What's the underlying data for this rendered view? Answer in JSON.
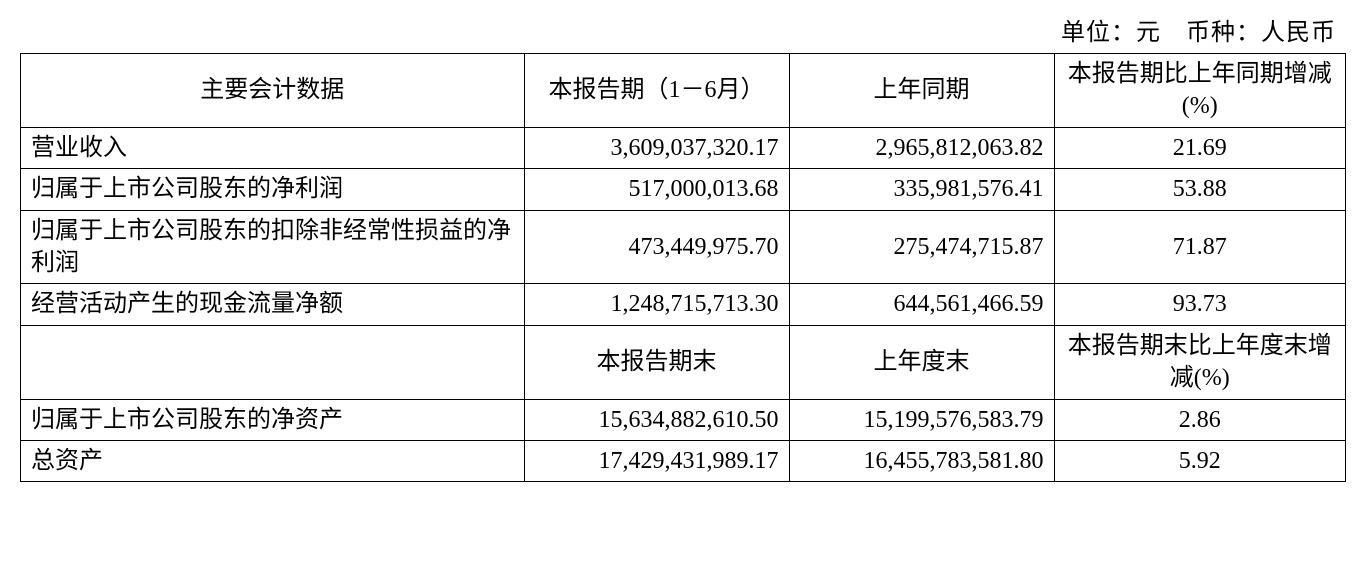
{
  "meta": {
    "unit_line": "单位：元　币种：人民币"
  },
  "table": {
    "header1": {
      "c0": "主要会计数据",
      "c1": "本报告期（1－6月）",
      "c2": "上年同期",
      "c3": "本报告期比上年同期增减(%)"
    },
    "rows1": [
      {
        "label": "营业收入",
        "current": "3,609,037,320.17",
        "previous": "2,965,812,063.82",
        "change": "21.69"
      },
      {
        "label": "归属于上市公司股东的净利润",
        "current": "517,000,013.68",
        "previous": "335,981,576.41",
        "change": "53.88"
      },
      {
        "label": "归属于上市公司股东的扣除非经常性损益的净利润",
        "current": "473,449,975.70",
        "previous": "275,474,715.87",
        "change": "71.87"
      },
      {
        "label": "经营活动产生的现金流量净额",
        "current": "1,248,715,713.30",
        "previous": "644,561,466.59",
        "change": "93.73"
      }
    ],
    "header2": {
      "c0": "",
      "c1": "本报告期末",
      "c2": "上年度末",
      "c3": "本报告期末比上年度末增减(%)"
    },
    "rows2": [
      {
        "label": "归属于上市公司股东的净资产",
        "current": "15,634,882,610.50",
        "previous": "15,199,576,583.79",
        "change": "2.86"
      },
      {
        "label": "总资产",
        "current": "17,429,431,989.17",
        "previous": "16,455,783,581.80",
        "change": "5.92"
      }
    ]
  },
  "style": {
    "font_family": "SimSun",
    "font_size_pt": 18,
    "border_color": "#000000",
    "background_color": "#ffffff",
    "text_color": "#000000",
    "column_widths_pct": [
      38,
      20,
      20,
      22
    ],
    "column_align": [
      "left",
      "right",
      "right",
      "center"
    ],
    "header_align": "center"
  }
}
